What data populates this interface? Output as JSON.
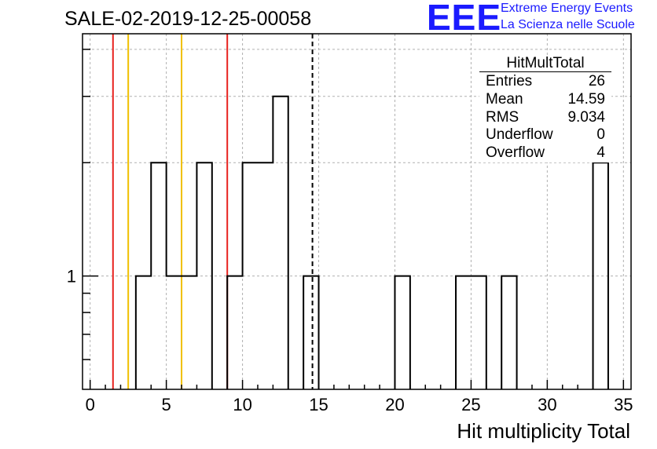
{
  "title": "SALE-02-2019-12-25-00058",
  "logo": {
    "mark": "EEE",
    "line1": "Extreme Energy Events",
    "line2": "La Scienza nelle Scuole",
    "color": "#1a1aff"
  },
  "stats": {
    "name": "HitMultTotal",
    "rows": [
      {
        "label": "Entries",
        "value": "26"
      },
      {
        "label": "Mean",
        "value": "14.59"
      },
      {
        "label": "RMS",
        "value": "9.034"
      },
      {
        "label": "Underflow",
        "value": "0"
      },
      {
        "label": "Overflow",
        "value": "4"
      }
    ]
  },
  "chart_data": {
    "type": "bar",
    "xlabel": "Hit multiplicity Total",
    "ylabel": "",
    "xlim": [
      -0.5,
      35.5
    ],
    "ylim": [
      0.5,
      4.4
    ],
    "yscale": "log",
    "grid": true,
    "bin_width": 1,
    "bins": [
      {
        "x": 3.5,
        "y": 1
      },
      {
        "x": 4.5,
        "y": 2
      },
      {
        "x": 5.5,
        "y": 1
      },
      {
        "x": 6.5,
        "y": 1
      },
      {
        "x": 7.5,
        "y": 2
      },
      {
        "x": 8.5,
        "y": 0
      },
      {
        "x": 9.5,
        "y": 1
      },
      {
        "x": 10.5,
        "y": 2
      },
      {
        "x": 11.5,
        "y": 2
      },
      {
        "x": 12.5,
        "y": 3
      },
      {
        "x": 14.5,
        "y": 1
      },
      {
        "x": 20.5,
        "y": 1
      },
      {
        "x": 24.5,
        "y": 1
      },
      {
        "x": 25.5,
        "y": 1
      },
      {
        "x": 27.5,
        "y": 1
      },
      {
        "x": 33.5,
        "y": 2
      }
    ],
    "x_ticks": [
      0,
      5,
      10,
      15,
      20,
      25,
      30,
      35
    ],
    "y_tick_labels": [
      {
        "value": 1,
        "label": "1"
      }
    ],
    "vlines": [
      {
        "x": 1.5,
        "color": "#e8221e",
        "style": "solid"
      },
      {
        "x": 2.5,
        "color": "#f0c000",
        "style": "solid"
      },
      {
        "x": 6.0,
        "color": "#f0c000",
        "style": "solid"
      },
      {
        "x": 9.0,
        "color": "#e8221e",
        "style": "solid"
      },
      {
        "x": 14.59,
        "color": "#000000",
        "style": "dashed"
      }
    ]
  }
}
